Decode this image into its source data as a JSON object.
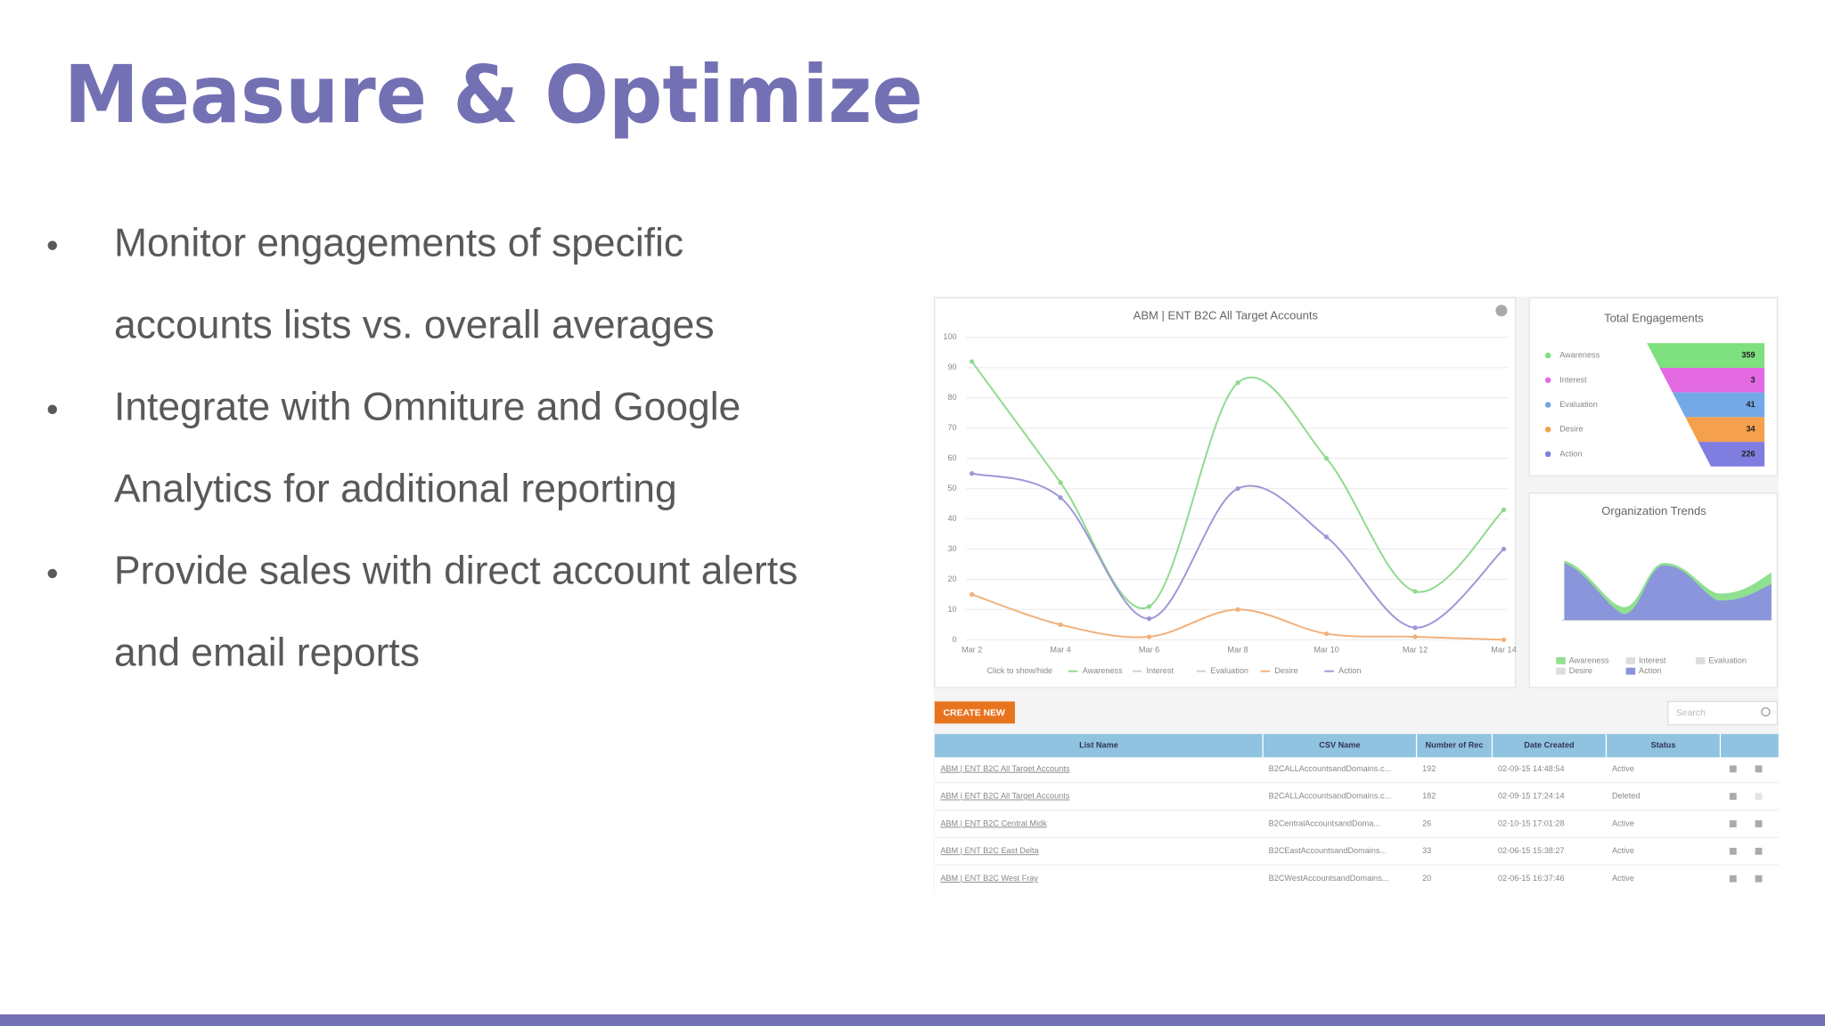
{
  "title": "Measure & Optimize",
  "bullets": [
    [
      "Monitor engagements of specific",
      "accounts lists vs. overall averages"
    ],
    [
      "Integrate with Omniture and Google",
      "Analytics for additional reporting"
    ],
    [
      "Provide sales with direct account alerts",
      "and email reports"
    ]
  ],
  "dashboard": {
    "engagement_chart": {
      "type": "line",
      "title": "ABM | ENT B2C All Target Accounts",
      "categories": [
        "Mar 2",
        "Mar 4",
        "Mar 6",
        "Mar 8",
        "Mar 10",
        "Mar 12",
        "Mar 14"
      ],
      "ylim": [
        0,
        100
      ],
      "yticks": [
        0,
        10,
        20,
        30,
        40,
        50,
        60,
        70,
        80,
        90,
        100
      ],
      "grid": true,
      "legend_hint": "Click to show/hide",
      "series": [
        {
          "name": "Awareness",
          "color": "#8fd98f",
          "visible": true,
          "values": [
            92,
            52,
            11,
            85,
            60,
            16,
            43
          ]
        },
        {
          "name": "Interest",
          "color": "#d0d0d0",
          "visible": false,
          "values": [
            null,
            null,
            null,
            null,
            null,
            null,
            null
          ]
        },
        {
          "name": "Evaluation",
          "color": "#d0d0d0",
          "visible": false,
          "values": [
            null,
            null,
            null,
            null,
            null,
            null,
            null
          ]
        },
        {
          "name": "Desire",
          "color": "#f2b07a",
          "visible": true,
          "values": [
            15,
            5,
            1,
            10,
            2,
            1,
            0
          ]
        },
        {
          "name": "Action",
          "color": "#9c98d8",
          "visible": true,
          "values": [
            55,
            47,
            7,
            50,
            34,
            4,
            30
          ]
        }
      ]
    },
    "total_engagements": {
      "title": "Total Engagements",
      "stages": [
        {
          "name": "Awareness",
          "color": "#7ee07e",
          "value": 359
        },
        {
          "name": "Interest",
          "color": "#e46ae4",
          "value": 3
        },
        {
          "name": "Evaluation",
          "color": "#72a9e6",
          "value": 41
        },
        {
          "name": "Desire",
          "color": "#f5a04c",
          "value": 34
        },
        {
          "name": "Action",
          "color": "#7f7ee0",
          "value": 226
        }
      ]
    },
    "organization_trends": {
      "title": "Organization Trends",
      "legend": [
        "Awareness",
        "Interest",
        "Evaluation",
        "Desire",
        "Action"
      ]
    },
    "create_button": "CREATE NEW",
    "search_placeholder": "Search",
    "table": {
      "headers": [
        "List Name",
        "CSV Name",
        "Number of Rec",
        "Date Created",
        "Status"
      ],
      "rows": [
        [
          "ABM | ENT B2C All Target Accounts",
          "B2CALLAccountsandDomains.c...",
          "192",
          "02-09-15 14:48:54",
          "Active"
        ],
        [
          "ABM | ENT B2C All Target Accounts",
          "B2CALLAccountsandDomains.c...",
          "182",
          "02-09-15 17:24:14",
          "Deleted"
        ],
        [
          "ABM | ENT B2C Central Midk",
          "B2CentralAccountsandDoma...",
          "26",
          "02-10-15 17:01:28",
          "Active"
        ],
        [
          "ABM | ENT B2C East Delta",
          "B2CEastAccountsandDomains...",
          "33",
          "02-06-15 15:38:27",
          "Active"
        ],
        [
          "ABM | ENT B2C West Fray",
          "B2CWestAccountsandDomains...",
          "20",
          "02-06-15 16:37:46",
          "Active"
        ]
      ]
    }
  }
}
